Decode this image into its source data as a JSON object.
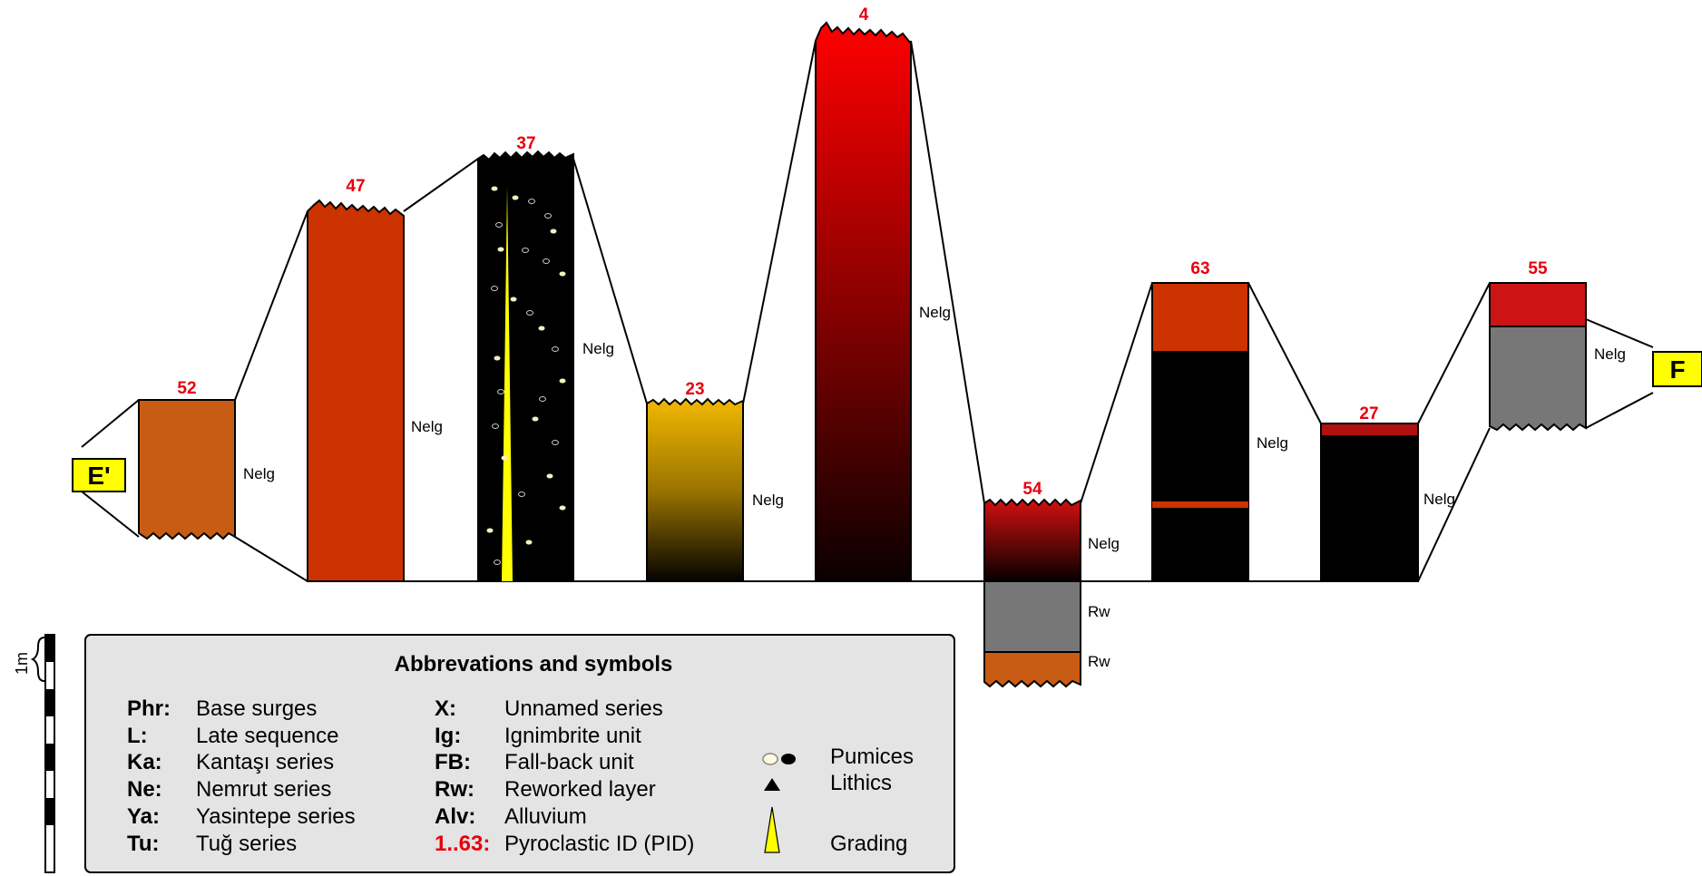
{
  "colors": {
    "id_red": "#e8000b",
    "orange_brown": "#c85c14",
    "orange_red": "#cc3300",
    "black": "#000000",
    "yellow": "#ffff00",
    "gold": "#e6b400",
    "red": "#ee0000",
    "crimson": "#cc1414",
    "grey": "#777777",
    "legend_bg": "#e4e4e4"
  },
  "section_ends": {
    "left": "E'",
    "right": "F"
  },
  "columns": [
    {
      "id": "52",
      "labels": [
        "Nelg"
      ],
      "fill": "orange-brown"
    },
    {
      "id": "47",
      "labels": [
        "Nelg"
      ],
      "fill": "orange-red"
    },
    {
      "id": "37",
      "labels": [
        "Nelg"
      ],
      "fill": "black with pumices and grading"
    },
    {
      "id": "23",
      "labels": [
        "Nelg"
      ],
      "fill": "gold to black gradient"
    },
    {
      "id": "4",
      "labels": [
        "Nelg"
      ],
      "fill": "red to black gradient"
    },
    {
      "id": "54",
      "labels": [
        "Nelg",
        "Rw",
        "Rw"
      ],
      "fill": "red-black, grey, orange-brown"
    },
    {
      "id": "63",
      "labels": [
        "Nelg"
      ],
      "fill": "orange-red over black"
    },
    {
      "id": "27",
      "labels": [
        "Nelg"
      ],
      "fill": "black"
    },
    {
      "id": "55",
      "labels": [
        "Nelg"
      ],
      "fill": "crimson over grey"
    }
  ],
  "scale": {
    "label": "1m"
  },
  "legend": {
    "title": "Abbrevations and symbols",
    "left_items": [
      {
        "key": "Phr:",
        "value": "Base surges"
      },
      {
        "key": "L:",
        "value": "Late sequence"
      },
      {
        "key": "Ka:",
        "value": "Kantaşı series"
      },
      {
        "key": "Ne:",
        "value": "Nemrut series"
      },
      {
        "key": "Ya:",
        "value": "Yasintepe series"
      },
      {
        "key": "Tu:",
        "value": "Tuğ series"
      }
    ],
    "middle_items": [
      {
        "key": "X:",
        "value": "Unnamed series"
      },
      {
        "key": "Ig:",
        "value": "Ignimbrite unit"
      },
      {
        "key": "FB:",
        "value": "Fall-back unit"
      },
      {
        "key": "Rw:",
        "value": "Reworked layer"
      },
      {
        "key": "Alv:",
        "value": "Alluvium"
      },
      {
        "key": "1..63:",
        "value": "Pyroclastic ID (PID)"
      }
    ],
    "symbols": [
      {
        "icon": "pumice-icons",
        "label": "Pumices"
      },
      {
        "icon": "lithic-triangle-icon",
        "label": "Lithics"
      },
      {
        "icon": "grading-wedge-icon",
        "label": "Grading"
      }
    ]
  }
}
